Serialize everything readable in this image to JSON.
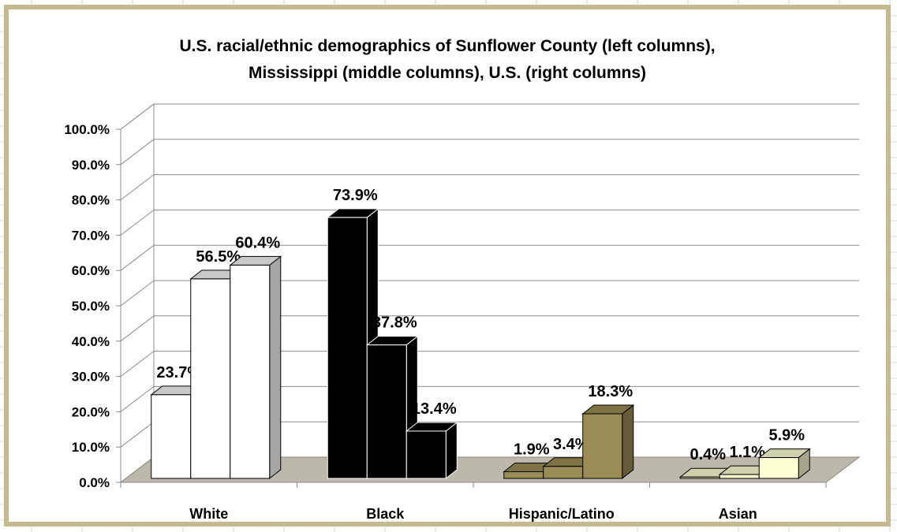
{
  "chart_data": {
    "type": "bar",
    "title": "U.S. racial/ethnic demographics of Sunflower County (left columns), Mississippi (middle columns), U.S. (right columns)",
    "title_lines": [
      "U.S. racial/ethnic demographics of Sunflower County (left columns),",
      "Mississippi (middle columns), U.S. (right columns)"
    ],
    "categories": [
      "White",
      "Black",
      "Hispanic/Latino",
      "Asian"
    ],
    "values": [
      [
        23.7,
        56.5,
        60.4
      ],
      [
        73.9,
        37.8,
        13.4
      ],
      [
        1.9,
        3.4,
        18.3
      ],
      [
        0.4,
        1.1,
        5.9
      ]
    ],
    "value_labels": [
      [
        "23.7%",
        "56.5%",
        "60.4%"
      ],
      [
        "73.9%",
        "37.8%",
        "13.4%"
      ],
      [
        "1.9%",
        "3.4%",
        "18.3%"
      ],
      [
        "0.4%",
        "1.1%",
        "5.9%"
      ]
    ],
    "category_colors": [
      "#ffffff",
      "#000000",
      "#9b8c55",
      "#ffffd4"
    ],
    "ylim": [
      0,
      100
    ],
    "y_ticks": [
      "0.0%",
      "10.0%",
      "20.0%",
      "30.0%",
      "40.0%",
      "50.0%",
      "60.0%",
      "70.0%",
      "80.0%",
      "90.0%",
      "100.0%"
    ],
    "xlabel": "",
    "ylabel": "",
    "grid": true,
    "legend": "none",
    "floor_color": "#bcb8ab",
    "frame_color": "#c4b98f"
  }
}
